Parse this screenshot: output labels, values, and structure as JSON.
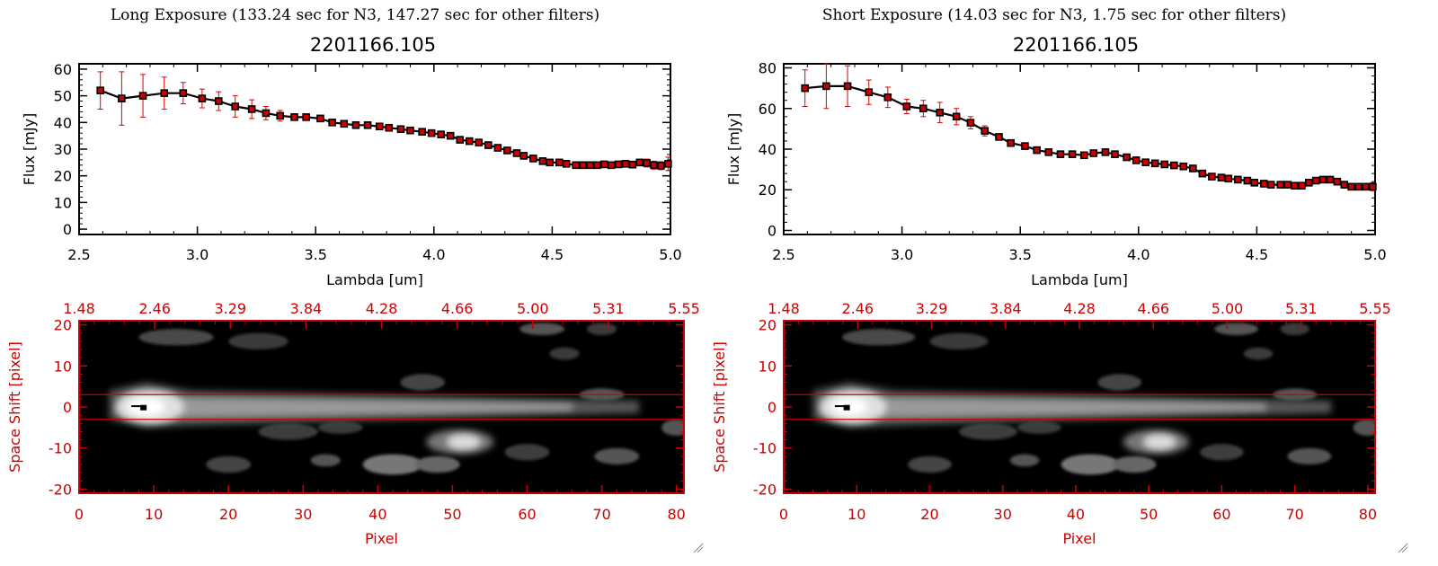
{
  "panels": [
    {
      "title": "Long Exposure (133.24 sec for N3, 147.27 sec for other filters)",
      "object_name": "2201166.105",
      "spectrum": {
        "type": "line",
        "xlabel": "Lambda [um]",
        "ylabel": "Flux [mJy]",
        "xlim": [
          2.5,
          5.0
        ],
        "ylim": [
          -2,
          62
        ],
        "xticks": [
          "2.5",
          "3.0",
          "3.5",
          "4.0",
          "4.5",
          "5.0"
        ],
        "yticks": [
          "0",
          "10",
          "20",
          "30",
          "40",
          "50",
          "60"
        ],
        "series": [
          {
            "x": [
              2.59,
              2.68,
              2.77,
              2.86,
              2.94,
              3.02,
              3.09,
              3.16,
              3.23,
              3.29,
              3.35,
              3.41,
              3.46,
              3.52,
              3.57,
              3.62,
              3.67,
              3.72,
              3.77,
              3.81,
              3.86,
              3.9,
              3.95,
              3.99,
              4.03,
              4.07,
              4.11,
              4.15,
              4.19,
              4.23,
              4.27,
              4.31,
              4.35,
              4.38,
              4.42,
              4.46,
              4.49,
              4.53,
              4.56,
              4.6,
              4.63,
              4.66,
              4.69,
              4.72,
              4.75,
              4.78,
              4.81,
              4.84,
              4.87,
              4.9,
              4.93,
              4.96,
              4.99
            ],
            "y": [
              52,
              49,
              50,
              51,
              51,
              49,
              48,
              46,
              45,
              43.5,
              42.5,
              42,
              42,
              41.5,
              40,
              39.5,
              39,
              39,
              38.5,
              38,
              37.5,
              37,
              36.5,
              36,
              35.5,
              35,
              33.5,
              33,
              32.5,
              31.5,
              30.5,
              29.5,
              28.5,
              27.5,
              26.5,
              25.5,
              25,
              25,
              24.5,
              24,
              24,
              24,
              24,
              24.3,
              24,
              24.3,
              24.5,
              24.2,
              25,
              24.8,
              24,
              23.8,
              24.5
            ],
            "err": [
              7,
              10,
              8,
              6,
              4,
              3.5,
              3.5,
              4,
              3.5,
              2.5,
              2,
              1.2,
              1,
              0.8,
              0.8,
              0.8,
              0.8,
              0.8,
              0.8,
              0.8,
              0.8,
              0.8,
              0.8,
              0.8,
              0.8,
              0.8,
              0.8,
              0.8,
              0.8,
              0.8,
              0.8,
              0.8,
              0.8,
              0.8,
              0.8,
              0.8,
              0.8,
              0.8,
              0.8,
              0.8,
              0.8,
              0.8,
              0.8,
              0.8,
              0.8,
              0.8,
              0.8,
              0.8,
              1,
              1.5,
              1.5,
              1.5,
              2.5
            ]
          }
        ]
      },
      "image": {
        "type": "heatmap",
        "xlabel": "Pixel",
        "ylabel": "Space Shift [pixel]",
        "xlim": [
          0,
          81
        ],
        "ylim": [
          -21,
          21
        ],
        "xticks": [
          "0",
          "10",
          "20",
          "30",
          "40",
          "50",
          "60",
          "70",
          "80"
        ],
        "yticks": [
          "-20",
          "-10",
          "0",
          "10",
          "20"
        ],
        "top_ticks": [
          "1.48",
          "2.46",
          "3.29",
          "3.84",
          "4.28",
          "4.66",
          "5.00",
          "5.31",
          "5.55"
        ],
        "aperture_lines": [
          3,
          -3
        ]
      }
    },
    {
      "title": "Short Exposure (14.03 sec for N3, 1.75 sec for other filters)",
      "object_name": "2201166.105",
      "spectrum": {
        "type": "line",
        "xlabel": "Lambda [um]",
        "ylabel": "Flux [mJy]",
        "xlim": [
          2.5,
          5.0
        ],
        "ylim": [
          -2,
          82
        ],
        "xticks": [
          "2.5",
          "3.0",
          "3.5",
          "4.0",
          "4.5",
          "5.0"
        ],
        "yticks": [
          "0",
          "20",
          "40",
          "60",
          "80"
        ],
        "series": [
          {
            "x": [
              2.59,
              2.68,
              2.77,
              2.86,
              2.94,
              3.02,
              3.09,
              3.16,
              3.23,
              3.29,
              3.35,
              3.41,
              3.46,
              3.52,
              3.57,
              3.62,
              3.67,
              3.72,
              3.77,
              3.81,
              3.86,
              3.9,
              3.95,
              3.99,
              4.03,
              4.07,
              4.11,
              4.15,
              4.19,
              4.23,
              4.27,
              4.31,
              4.35,
              4.38,
              4.42,
              4.46,
              4.49,
              4.53,
              4.56,
              4.6,
              4.63,
              4.66,
              4.69,
              4.72,
              4.75,
              4.78,
              4.81,
              4.84,
              4.87,
              4.9,
              4.93,
              4.96,
              4.99
            ],
            "y": [
              70,
              71,
              71,
              68,
              65.5,
              61,
              60,
              58,
              56,
              53,
              49,
              46,
              43,
              41.5,
              39.5,
              38.5,
              37.5,
              37.5,
              37,
              38,
              38.5,
              37.5,
              36,
              34.5,
              33.5,
              33,
              32.5,
              32,
              31.5,
              30.5,
              28,
              26.5,
              26,
              25.5,
              25,
              24.5,
              23.5,
              23,
              22.5,
              22.5,
              22.5,
              22,
              22,
              23.5,
              24.5,
              25,
              25,
              24,
              22.5,
              21.5,
              21.5,
              21.5,
              21.5
            ],
            "err": [
              9,
              11,
              10,
              6,
              5,
              3.5,
              4,
              5,
              4,
              3,
              2.5,
              1.2,
              1,
              0.8,
              0.8,
              0.8,
              0.8,
              0.8,
              0.8,
              0.8,
              0.8,
              0.8,
              0.8,
              0.8,
              0.8,
              0.8,
              0.8,
              0.8,
              0.8,
              0.8,
              0.8,
              0.8,
              0.8,
              0.8,
              0.8,
              0.8,
              0.8,
              0.8,
              0.8,
              0.8,
              0.8,
              0.8,
              0.8,
              0.8,
              0.8,
              0.8,
              0.8,
              0.8,
              1,
              1.5,
              1.5,
              1.5,
              2
            ]
          }
        ]
      },
      "image": {
        "type": "heatmap",
        "xlabel": "Pixel",
        "ylabel": "Space Shift [pixel]",
        "xlim": [
          0,
          81
        ],
        "ylim": [
          -21,
          21
        ],
        "xticks": [
          "0",
          "10",
          "20",
          "30",
          "40",
          "50",
          "60",
          "70",
          "80"
        ],
        "yticks": [
          "-20",
          "-10",
          "0",
          "10",
          "20"
        ],
        "top_ticks": [
          "1.48",
          "2.46",
          "3.29",
          "3.84",
          "4.28",
          "4.66",
          "5.00",
          "5.31",
          "5.55"
        ],
        "aperture_lines": [
          3,
          -3
        ]
      }
    }
  ],
  "colors": {
    "axis_red": "#cc0000",
    "error_bar_red": "#dd0000",
    "marker": "#000000",
    "marker_fill": "#cc0000",
    "line": "#000000"
  }
}
